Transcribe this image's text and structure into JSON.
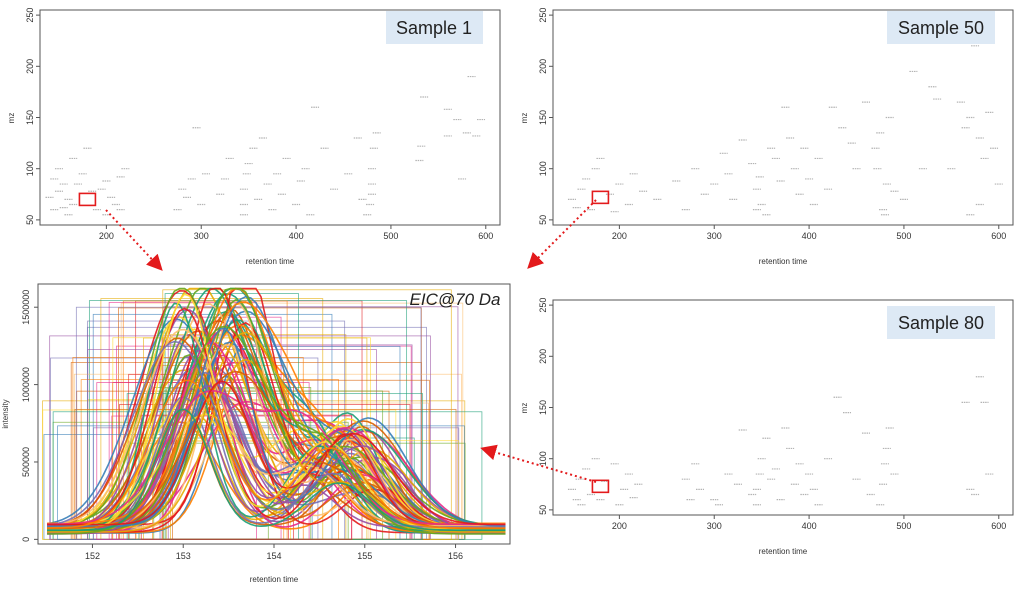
{
  "chart_data": [
    {
      "type": "scatter",
      "panel": "sample-1",
      "label": "Sample 1",
      "xlabel": "retention time",
      "ylabel": "mz",
      "xlim": [
        130,
        615
      ],
      "ylim": [
        45,
        255
      ],
      "xticks": [
        200,
        300,
        400,
        500,
        600
      ],
      "yticks": [
        50,
        100,
        150,
        200,
        250
      ],
      "highlight": {
        "x": 180,
        "y": 70
      },
      "points": [
        [
          150,
          78
        ],
        [
          155,
          62
        ],
        [
          160,
          55
        ],
        [
          160,
          70
        ],
        [
          165,
          65
        ],
        [
          145,
          90
        ],
        [
          150,
          100
        ],
        [
          170,
          85
        ],
        [
          175,
          95
        ],
        [
          190,
          60
        ],
        [
          195,
          80
        ],
        [
          200,
          88
        ],
        [
          210,
          65
        ],
        [
          215,
          92
        ],
        [
          220,
          100
        ],
        [
          140,
          72
        ],
        [
          145,
          60
        ],
        [
          155,
          85
        ],
        [
          165,
          110
        ],
        [
          180,
          120
        ],
        [
          185,
          78
        ],
        [
          200,
          55
        ],
        [
          205,
          72
        ],
        [
          215,
          60
        ],
        [
          275,
          60
        ],
        [
          280,
          80
        ],
        [
          285,
          72
        ],
        [
          290,
          90
        ],
        [
          300,
          65
        ],
        [
          305,
          95
        ],
        [
          295,
          140
        ],
        [
          320,
          75
        ],
        [
          325,
          90
        ],
        [
          330,
          110
        ],
        [
          345,
          55
        ],
        [
          345,
          65
        ],
        [
          345,
          80
        ],
        [
          348,
          95
        ],
        [
          350,
          105
        ],
        [
          355,
          120
        ],
        [
          360,
          70
        ],
        [
          365,
          130
        ],
        [
          370,
          85
        ],
        [
          375,
          60
        ],
        [
          380,
          95
        ],
        [
          385,
          75
        ],
        [
          390,
          110
        ],
        [
          400,
          65
        ],
        [
          405,
          88
        ],
        [
          410,
          100
        ],
        [
          415,
          55
        ],
        [
          420,
          160
        ],
        [
          430,
          120
        ],
        [
          440,
          80
        ],
        [
          455,
          95
        ],
        [
          465,
          130
        ],
        [
          470,
          70
        ],
        [
          475,
          55
        ],
        [
          478,
          65
        ],
        [
          480,
          75
        ],
        [
          480,
          85
        ],
        [
          480,
          100
        ],
        [
          482,
          120
        ],
        [
          485,
          135
        ],
        [
          530,
          108
        ],
        [
          532,
          122
        ],
        [
          535,
          170
        ],
        [
          570,
          148
        ],
        [
          580,
          135
        ],
        [
          585,
          190
        ],
        [
          590,
          132
        ],
        [
          595,
          148
        ],
        [
          575,
          90
        ],
        [
          560,
          158
        ],
        [
          560,
          132
        ]
      ]
    },
    {
      "type": "scatter",
      "panel": "sample-50",
      "label": "Sample 50",
      "xlabel": "retention time",
      "ylabel": "mz",
      "xlim": [
        130,
        615
      ],
      "ylim": [
        45,
        255
      ],
      "xticks": [
        200,
        300,
        400,
        500,
        600
      ],
      "yticks": [
        50,
        100,
        150,
        200,
        250
      ],
      "highlight": {
        "x": 180,
        "y": 72
      },
      "points": [
        [
          150,
          70
        ],
        [
          155,
          62
        ],
        [
          160,
          80
        ],
        [
          165,
          90
        ],
        [
          170,
          60
        ],
        [
          175,
          100
        ],
        [
          180,
          110
        ],
        [
          190,
          75
        ],
        [
          195,
          58
        ],
        [
          200,
          85
        ],
        [
          210,
          65
        ],
        [
          215,
          95
        ],
        [
          225,
          78
        ],
        [
          240,
          70
        ],
        [
          260,
          88
        ],
        [
          270,
          60
        ],
        [
          280,
          100
        ],
        [
          290,
          75
        ],
        [
          300,
          85
        ],
        [
          310,
          115
        ],
        [
          315,
          95
        ],
        [
          320,
          70
        ],
        [
          330,
          128
        ],
        [
          340,
          105
        ],
        [
          345,
          60
        ],
        [
          345,
          80
        ],
        [
          348,
          92
        ],
        [
          350,
          65
        ],
        [
          355,
          55
        ],
        [
          360,
          120
        ],
        [
          365,
          110
        ],
        [
          370,
          88
        ],
        [
          375,
          160
        ],
        [
          380,
          130
        ],
        [
          385,
          100
        ],
        [
          390,
          75
        ],
        [
          395,
          120
        ],
        [
          400,
          90
        ],
        [
          405,
          65
        ],
        [
          410,
          110
        ],
        [
          420,
          80
        ],
        [
          425,
          160
        ],
        [
          435,
          140
        ],
        [
          445,
          125
        ],
        [
          450,
          100
        ],
        [
          460,
          165
        ],
        [
          470,
          120
        ],
        [
          472,
          100
        ],
        [
          475,
          135
        ],
        [
          478,
          60
        ],
        [
          480,
          55
        ],
        [
          482,
          85
        ],
        [
          485,
          150
        ],
        [
          490,
          78
        ],
        [
          500,
          70
        ],
        [
          510,
          195
        ],
        [
          520,
          100
        ],
        [
          530,
          180
        ],
        [
          535,
          168
        ],
        [
          550,
          100
        ],
        [
          560,
          165
        ],
        [
          565,
          140
        ],
        [
          570,
          150
        ],
        [
          575,
          220
        ],
        [
          580,
          130
        ],
        [
          585,
          110
        ],
        [
          590,
          155
        ],
        [
          595,
          120
        ],
        [
          600,
          85
        ],
        [
          580,
          65
        ],
        [
          570,
          55
        ]
      ]
    },
    {
      "type": "scatter",
      "panel": "sample-80",
      "label": "Sample 80",
      "xlabel": "retention time",
      "ylabel": "mz",
      "xlim": [
        130,
        615
      ],
      "ylim": [
        45,
        255
      ],
      "xticks": [
        200,
        300,
        400,
        500,
        600
      ],
      "yticks": [
        50,
        100,
        150,
        200,
        250
      ],
      "highlight": {
        "x": 180,
        "y": 73
      },
      "points": [
        [
          150,
          70
        ],
        [
          155,
          60
        ],
        [
          158,
          80
        ],
        [
          160,
          55
        ],
        [
          165,
          90
        ],
        [
          170,
          65
        ],
        [
          175,
          100
        ],
        [
          180,
          60
        ],
        [
          185,
          78
        ],
        [
          195,
          95
        ],
        [
          200,
          55
        ],
        [
          205,
          70
        ],
        [
          210,
          85
        ],
        [
          215,
          62
        ],
        [
          220,
          75
        ],
        [
          270,
          80
        ],
        [
          275,
          60
        ],
        [
          280,
          95
        ],
        [
          285,
          70
        ],
        [
          300,
          60
        ],
        [
          305,
          55
        ],
        [
          315,
          85
        ],
        [
          325,
          75
        ],
        [
          330,
          128
        ],
        [
          340,
          65
        ],
        [
          345,
          55
        ],
        [
          345,
          70
        ],
        [
          348,
          85
        ],
        [
          350,
          100
        ],
        [
          355,
          120
        ],
        [
          360,
          80
        ],
        [
          365,
          90
        ],
        [
          370,
          60
        ],
        [
          375,
          130
        ],
        [
          380,
          110
        ],
        [
          385,
          75
        ],
        [
          390,
          95
        ],
        [
          395,
          65
        ],
        [
          400,
          85
        ],
        [
          405,
          70
        ],
        [
          410,
          55
        ],
        [
          420,
          100
        ],
        [
          430,
          160
        ],
        [
          440,
          145
        ],
        [
          450,
          80
        ],
        [
          460,
          125
        ],
        [
          465,
          65
        ],
        [
          475,
          55
        ],
        [
          478,
          75
        ],
        [
          480,
          95
        ],
        [
          482,
          110
        ],
        [
          485,
          130
        ],
        [
          490,
          85
        ],
        [
          565,
          155
        ],
        [
          570,
          70
        ],
        [
          580,
          180
        ],
        [
          585,
          155
        ],
        [
          590,
          85
        ],
        [
          575,
          65
        ]
      ]
    },
    {
      "type": "line",
      "panel": "eic",
      "title": "EIC@70 Da",
      "xlabel": "retention time",
      "ylabel": "intensity",
      "xlim": [
        151.4,
        156.6
      ],
      "ylim": [
        -30000,
        1650000
      ],
      "xticks": [
        152,
        153,
        154,
        155,
        156
      ],
      "yticks": [
        0,
        500000,
        1000000,
        1500000
      ],
      "yticklabels": [
        "0",
        "500000",
        "1000000",
        "1500000"
      ],
      "palette": [
        "#e6ab02",
        "#d95f02",
        "#7570b3",
        "#e7298a",
        "#66a61e",
        "#1b9e77",
        "#e31a1c",
        "#ff7f00",
        "#984ea3",
        "#fdbf6f",
        "#377eb8",
        "#ffd92f"
      ],
      "curve_count": 80,
      "peak_rt_range": [
        152.9,
        153.7
      ],
      "peak_height_range": [
        700000,
        1620000
      ],
      "baseline": 70000
    }
  ],
  "panel_labels": {
    "sample1": "Sample 1",
    "sample50": "Sample 50",
    "sample80": "Sample 80",
    "eic": "EIC@70 Da"
  },
  "colors": {
    "label_box_bg": "#dde9f5",
    "highlight_red": "#e31a1c",
    "arrow_red": "#e31a1c",
    "tick_dash": "#b3b3b3"
  }
}
